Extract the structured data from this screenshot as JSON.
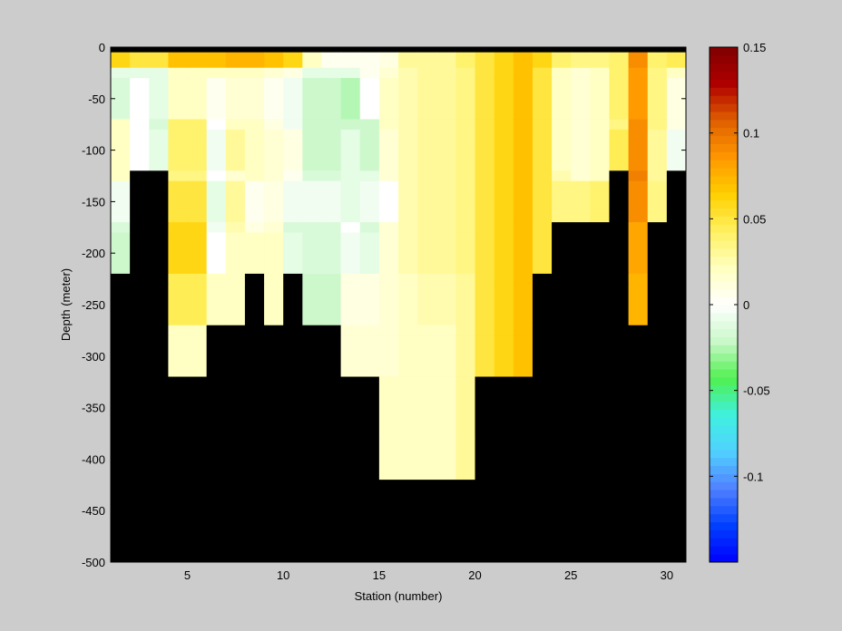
{
  "chart_data": {
    "type": "heatmap",
    "xlabel": "Station (number)",
    "ylabel": "Depth (meter)",
    "xlim": [
      1,
      31
    ],
    "ylim": [
      -500,
      0
    ],
    "xticks": [
      5,
      10,
      15,
      20,
      25,
      30
    ],
    "yticks": [
      0,
      -50,
      -100,
      -150,
      -200,
      -250,
      -300,
      -350,
      -400,
      -450,
      -500
    ],
    "colorbar": {
      "clim": [
        -0.15,
        0.15
      ],
      "ticks": [
        0.15,
        0.1,
        0.05,
        0,
        -0.05,
        -0.1
      ],
      "colors": [
        "#0000ff",
        "#0040ff",
        "#5080ff",
        "#50d0ff",
        "#40f0e0",
        "#50f050",
        "#c8f8c8",
        "#ffffff",
        "#ffffc0",
        "#fff060",
        "#ffd000",
        "#ff9800",
        "#e06000",
        "#b00000",
        "#800000"
      ]
    },
    "no_data_color": "#000000",
    "stations": [
      1.5,
      2.5,
      3.5,
      4.5,
      5.5,
      6.5,
      7.5,
      8.5,
      9.5,
      10.5,
      11.5,
      12.5,
      13.5,
      14.5,
      15.5,
      16.5,
      17.5,
      18.5,
      19.5,
      20.5,
      21.5,
      22.5,
      23.5,
      24.5,
      25.5,
      26.5,
      27.5,
      28.5,
      29.5,
      30.5
    ],
    "depths": [
      -2.5,
      -12.5,
      -25,
      -50,
      -75,
      -100,
      -125,
      -150,
      -175,
      -200,
      -225,
      -250,
      -275,
      -300,
      -350,
      -400,
      -450,
      -500
    ],
    "depth_edges": [
      0,
      -5,
      -20,
      -30,
      -70,
      -80,
      -120,
      -130,
      -170,
      -180,
      -220,
      -230,
      -270,
      -280,
      -320,
      -380,
      -420,
      -480,
      -500
    ],
    "values": [
      [
        null,
        null,
        null,
        null,
        null,
        null,
        null,
        null,
        null,
        null,
        null,
        null,
        null,
        null,
        null,
        null,
        null,
        null,
        null,
        null,
        null,
        null,
        null,
        null,
        null,
        null,
        null,
        null,
        null,
        null
      ],
      [
        0.06,
        0.05,
        0.05,
        0.07,
        0.07,
        0.07,
        0.075,
        0.075,
        0.07,
        0.06,
        0.02,
        0.005,
        0.005,
        0.005,
        0.01,
        0.03,
        0.03,
        0.03,
        0.04,
        0.05,
        0.06,
        0.07,
        0.06,
        0.04,
        0.035,
        0.035,
        0.04,
        0.09,
        0.04,
        0.045
      ],
      [
        -0.01,
        -0.01,
        -0.01,
        0.02,
        0.02,
        0.02,
        0.02,
        0.02,
        0.015,
        0.01,
        -0.01,
        -0.01,
        -0.01,
        0.005,
        0.015,
        0.025,
        0.03,
        0.03,
        0.035,
        0.05,
        0.06,
        0.07,
        0.05,
        0.02,
        0.015,
        0.02,
        0.04,
        0.085,
        0.035,
        0.02
      ],
      [
        -0.015,
        0.0,
        -0.01,
        0.02,
        0.02,
        0.005,
        0.015,
        0.015,
        0.005,
        -0.005,
        -0.02,
        -0.02,
        -0.025,
        0.0,
        0.02,
        0.025,
        0.03,
        0.03,
        0.035,
        0.05,
        0.06,
        0.07,
        0.05,
        0.02,
        0.015,
        0.02,
        0.04,
        0.085,
        0.035,
        0.01
      ],
      [
        0.02,
        0.0,
        -0.015,
        0.04,
        0.04,
        0.0,
        0.02,
        0.02,
        0.01,
        -0.005,
        -0.02,
        -0.02,
        -0.02,
        -0.02,
        0.02,
        0.025,
        0.03,
        0.03,
        0.035,
        0.05,
        0.06,
        0.07,
        0.05,
        0.02,
        0.015,
        0.02,
        0.035,
        0.09,
        0.035,
        0.01
      ],
      [
        0.02,
        0.0,
        -0.01,
        0.04,
        0.04,
        -0.005,
        0.03,
        0.02,
        0.015,
        0.01,
        -0.02,
        -0.02,
        -0.01,
        -0.02,
        0.015,
        0.025,
        0.03,
        0.03,
        0.035,
        0.05,
        0.06,
        0.07,
        0.05,
        0.02,
        0.015,
        0.02,
        0.045,
        0.09,
        0.03,
        -0.005
      ],
      [
        0.02,
        null,
        null,
        0.035,
        0.035,
        0.0,
        0.015,
        0.02,
        0.015,
        0.005,
        -0.015,
        -0.015,
        -0.01,
        -0.01,
        0.015,
        0.025,
        0.03,
        0.03,
        0.035,
        0.05,
        0.06,
        0.07,
        0.05,
        0.025,
        0.015,
        0.02,
        null,
        0.095,
        0.03,
        null
      ],
      [
        -0.005,
        null,
        null,
        0.05,
        0.05,
        -0.01,
        0.03,
        0.005,
        0.01,
        -0.005,
        -0.005,
        -0.005,
        -0.01,
        -0.005,
        0.0,
        0.025,
        0.03,
        0.03,
        0.035,
        0.05,
        0.06,
        0.07,
        0.05,
        0.035,
        0.035,
        0.04,
        null,
        0.09,
        0.035,
        null
      ],
      [
        -0.015,
        null,
        null,
        0.06,
        0.06,
        -0.005,
        0.025,
        0.01,
        0.015,
        -0.015,
        -0.015,
        -0.015,
        0.0,
        -0.015,
        0.015,
        0.025,
        0.03,
        0.03,
        0.035,
        0.05,
        0.06,
        0.07,
        0.05,
        null,
        null,
        null,
        null,
        0.08,
        null,
        null
      ],
      [
        -0.02,
        null,
        null,
        0.06,
        0.06,
        0.0,
        0.02,
        0.02,
        0.02,
        -0.01,
        -0.015,
        -0.015,
        -0.005,
        -0.01,
        0.015,
        0.025,
        0.03,
        0.03,
        0.035,
        0.05,
        0.06,
        0.07,
        0.05,
        null,
        null,
        null,
        null,
        0.08,
        null,
        null
      ],
      [
        null,
        null,
        null,
        0.045,
        0.045,
        0.02,
        0.02,
        null,
        0.02,
        null,
        -0.02,
        -0.02,
        0.01,
        0.01,
        0.015,
        0.02,
        0.025,
        0.025,
        0.03,
        0.05,
        0.06,
        0.07,
        null,
        null,
        null,
        null,
        null,
        0.075,
        null,
        null
      ],
      [
        null,
        null,
        null,
        0.045,
        0.045,
        0.02,
        0.02,
        null,
        0.02,
        null,
        -0.02,
        -0.02,
        0.01,
        0.01,
        0.015,
        0.02,
        0.025,
        0.025,
        0.03,
        0.05,
        0.06,
        0.07,
        null,
        null,
        null,
        null,
        null,
        0.075,
        null,
        null
      ],
      [
        null,
        null,
        null,
        0.02,
        0.02,
        null,
        null,
        null,
        null,
        null,
        null,
        null,
        0.015,
        0.015,
        0.015,
        0.02,
        0.02,
        0.02,
        0.03,
        0.05,
        0.06,
        0.07,
        null,
        null,
        null,
        null,
        null,
        null,
        null,
        null
      ],
      [
        null,
        null,
        null,
        0.02,
        0.02,
        null,
        null,
        null,
        null,
        null,
        null,
        null,
        0.015,
        0.015,
        0.015,
        0.02,
        0.02,
        0.02,
        0.03,
        0.05,
        0.06,
        0.07,
        null,
        null,
        null,
        null,
        null,
        null,
        null,
        null
      ],
      [
        null,
        null,
        null,
        null,
        null,
        null,
        null,
        null,
        null,
        null,
        null,
        null,
        null,
        null,
        0.02,
        0.02,
        0.02,
        0.02,
        0.03,
        null,
        null,
        null,
        null,
        null,
        null,
        null,
        null,
        null,
        null,
        null
      ],
      [
        null,
        null,
        null,
        null,
        null,
        null,
        null,
        null,
        null,
        null,
        null,
        null,
        null,
        null,
        0.02,
        0.02,
        0.02,
        0.02,
        0.03,
        null,
        null,
        null,
        null,
        null,
        null,
        null,
        null,
        null,
        null,
        null
      ],
      [
        null,
        null,
        null,
        null,
        null,
        null,
        null,
        null,
        null,
        null,
        null,
        null,
        null,
        null,
        null,
        null,
        null,
        null,
        null,
        null,
        null,
        null,
        null,
        null,
        null,
        null,
        null,
        null,
        null,
        null
      ],
      [
        null,
        null,
        null,
        null,
        null,
        null,
        null,
        null,
        null,
        null,
        null,
        null,
        null,
        null,
        null,
        null,
        null,
        null,
        null,
        null,
        null,
        null,
        null,
        null,
        null,
        null,
        null,
        null,
        null,
        null
      ]
    ]
  }
}
